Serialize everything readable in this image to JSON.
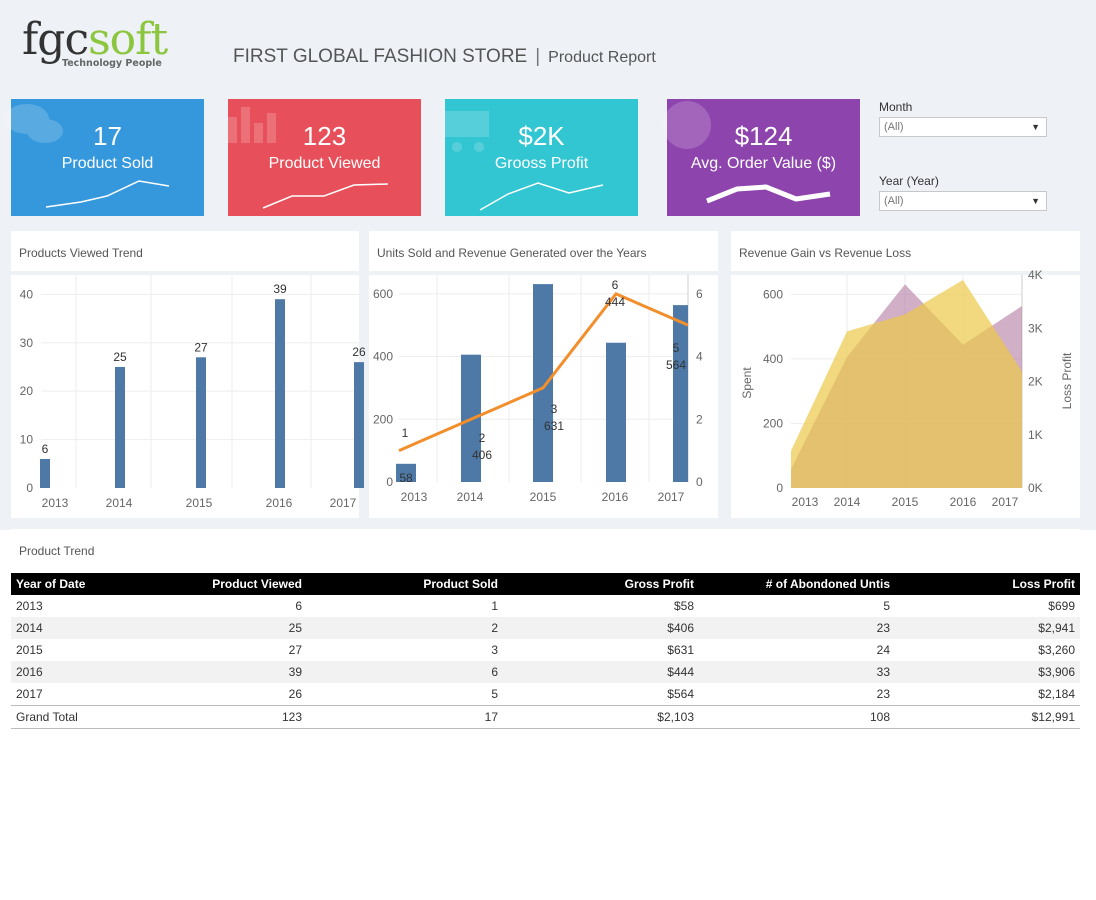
{
  "header": {
    "logo_part1": "fgc",
    "logo_part2": "soft",
    "logo_tagline": "Technology People",
    "store_title": "FIRST GLOBAL FASHION STORE",
    "separator": "|",
    "report_name": "Product Report"
  },
  "kpis": [
    {
      "value": "17",
      "label": "Product Sold",
      "color": "#3598dc"
    },
    {
      "value": "123",
      "label": "Product Viewed",
      "color": "#e7505a"
    },
    {
      "value": "$2K",
      "label": "Grooss Profit",
      "color": "#32c5d2"
    },
    {
      "value": "$124",
      "label": "Avg. Order Value ($)",
      "color": "#8e44ad"
    }
  ],
  "filters": {
    "month_label": "Month",
    "month_value": "(All)",
    "year_label": "Year (Year)",
    "year_value": "(All)"
  },
  "chart_data": [
    {
      "type": "bar",
      "title": "Products Viewed Trend",
      "categories": [
        "2013",
        "2014",
        "2015",
        "2016",
        "2017"
      ],
      "values": [
        6,
        25,
        27,
        39,
        26
      ],
      "y_ticks": [
        "0",
        "10",
        "20",
        "30",
        "40"
      ],
      "ylim": [
        0,
        44
      ],
      "color": "#4e79a7"
    },
    {
      "type": "bar",
      "title": "Units Sold and Revenue Generated over the Years",
      "categories": [
        "2013",
        "2014",
        "2015",
        "2016",
        "2017"
      ],
      "series": [
        {
          "values": [
            58,
            406,
            631,
            444,
            564
          ],
          "type": "bar",
          "color": "#4e79a7"
        },
        {
          "values": [
            1,
            2,
            3,
            6,
            5
          ],
          "type": "line",
          "color": "#f28e2b"
        }
      ],
      "y_ticks": [
        "0",
        "200",
        "400",
        "600"
      ],
      "y2_ticks": [
        "0",
        "2",
        "4",
        "6"
      ],
      "ylim": [
        0,
        660
      ],
      "y2lim": [
        0,
        6.6
      ]
    },
    {
      "type": "area",
      "title": "Revenue Gain vs Revenue Loss",
      "categories": [
        "2013",
        "2014",
        "2015",
        "2016",
        "2017"
      ],
      "ylabel": "Spent",
      "y2label": "Loss Profit",
      "y_ticks": [
        "0",
        "200",
        "400",
        "600"
      ],
      "y2_ticks": [
        "0K",
        "1K",
        "2K",
        "3K",
        "4K"
      ],
      "ylim": [
        0,
        660
      ],
      "y2lim": [
        0,
        4000
      ],
      "series": [
        {
          "values": [
            58,
            406,
            631,
            444,
            564
          ],
          "color": "#b07aa1"
        },
        {
          "values": [
            699,
            2941,
            3260,
            3906,
            2184
          ],
          "color": "#edc948"
        }
      ]
    }
  ],
  "table": {
    "title": "Product Trend",
    "columns": [
      "Year of Date",
      "Product Viewed",
      "Product Sold",
      "Gross Profit",
      "# of Abondoned Untis",
      "Loss Profit"
    ],
    "rows": [
      [
        "2013",
        "6",
        "1",
        "$58",
        "5",
        "$699"
      ],
      [
        "2014",
        "25",
        "2",
        "$406",
        "23",
        "$2,941"
      ],
      [
        "2015",
        "27",
        "3",
        "$631",
        "24",
        "$3,260"
      ],
      [
        "2016",
        "39",
        "6",
        "$444",
        "33",
        "$3,906"
      ],
      [
        "2017",
        "26",
        "5",
        "$564",
        "23",
        "$2,184"
      ]
    ],
    "total": [
      "Grand Total",
      "123",
      "17",
      "$2,103",
      "108",
      "$12,991"
    ]
  }
}
